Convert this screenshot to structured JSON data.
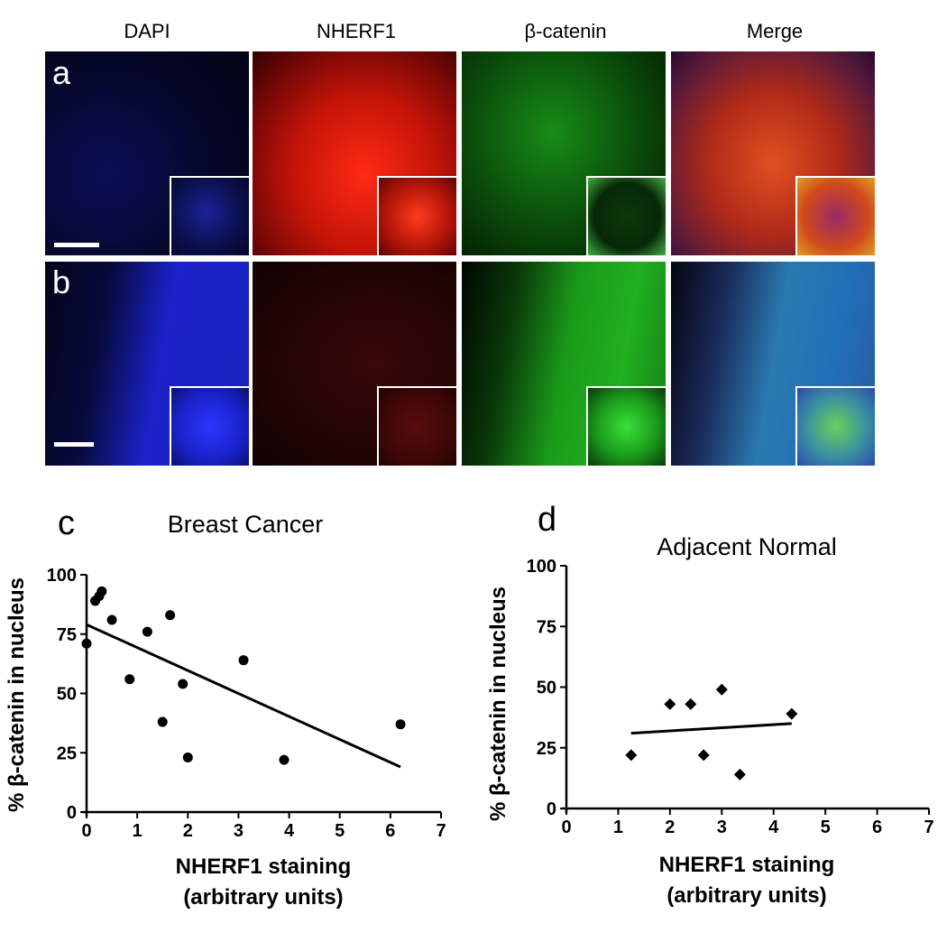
{
  "micrographs": {
    "column_headers": [
      "DAPI",
      "NHERF1",
      "β-catenin",
      "Merge"
    ],
    "row_labels": [
      "a",
      "b"
    ]
  },
  "colors": {
    "dapi": "#1a22d8",
    "nherf1": "#e01010",
    "catenin": "#1fc01f",
    "merge_a": "#d0401c",
    "merge_b": "#2a7ab0"
  },
  "chart_data": [
    {
      "panel_letter": "c",
      "type": "scatter",
      "title": "Breast Cancer",
      "xlabel": "NHERF1 staining (arbitrary units)",
      "ylabel": "% β-catenin in nucleus",
      "marker": "circle",
      "xlim": [
        0,
        7
      ],
      "ylim": [
        0,
        100
      ],
      "xticks": [
        "0",
        "1",
        "2",
        "3",
        "4",
        "5",
        "6",
        "7"
      ],
      "yticks": [
        "0",
        "25",
        "50",
        "75",
        "100"
      ],
      "points": [
        {
          "x": 0.0,
          "y": 71
        },
        {
          "x": 0.17,
          "y": 89
        },
        {
          "x": 0.25,
          "y": 91
        },
        {
          "x": 0.3,
          "y": 93
        },
        {
          "x": 0.5,
          "y": 81
        },
        {
          "x": 0.85,
          "y": 56
        },
        {
          "x": 1.2,
          "y": 76
        },
        {
          "x": 1.5,
          "y": 38
        },
        {
          "x": 1.65,
          "y": 83
        },
        {
          "x": 1.9,
          "y": 54
        },
        {
          "x": 2.0,
          "y": 23
        },
        {
          "x": 3.1,
          "y": 64
        },
        {
          "x": 3.9,
          "y": 22
        },
        {
          "x": 6.2,
          "y": 37
        }
      ],
      "fit": {
        "x": [
          0.0,
          6.2
        ],
        "y": [
          79,
          19
        ]
      }
    },
    {
      "panel_letter": "d",
      "type": "scatter",
      "title": "Adjacent Normal",
      "xlabel": "NHERF1 staining (arbitrary units)",
      "ylabel": "% β-catenin in nucleus",
      "marker": "diamond",
      "xlim": [
        0,
        7
      ],
      "ylim": [
        0,
        100
      ],
      "xticks": [
        "0",
        "1",
        "2",
        "3",
        "4",
        "5",
        "6",
        "7"
      ],
      "yticks": [
        "0",
        "25",
        "50",
        "75",
        "100"
      ],
      "points": [
        {
          "x": 1.25,
          "y": 22
        },
        {
          "x": 2.0,
          "y": 43
        },
        {
          "x": 2.4,
          "y": 43
        },
        {
          "x": 2.65,
          "y": 22
        },
        {
          "x": 3.0,
          "y": 49
        },
        {
          "x": 3.35,
          "y": 14
        },
        {
          "x": 4.35,
          "y": 39
        }
      ],
      "fit": {
        "x": [
          1.25,
          4.35
        ],
        "y": [
          31,
          35
        ]
      }
    }
  ]
}
